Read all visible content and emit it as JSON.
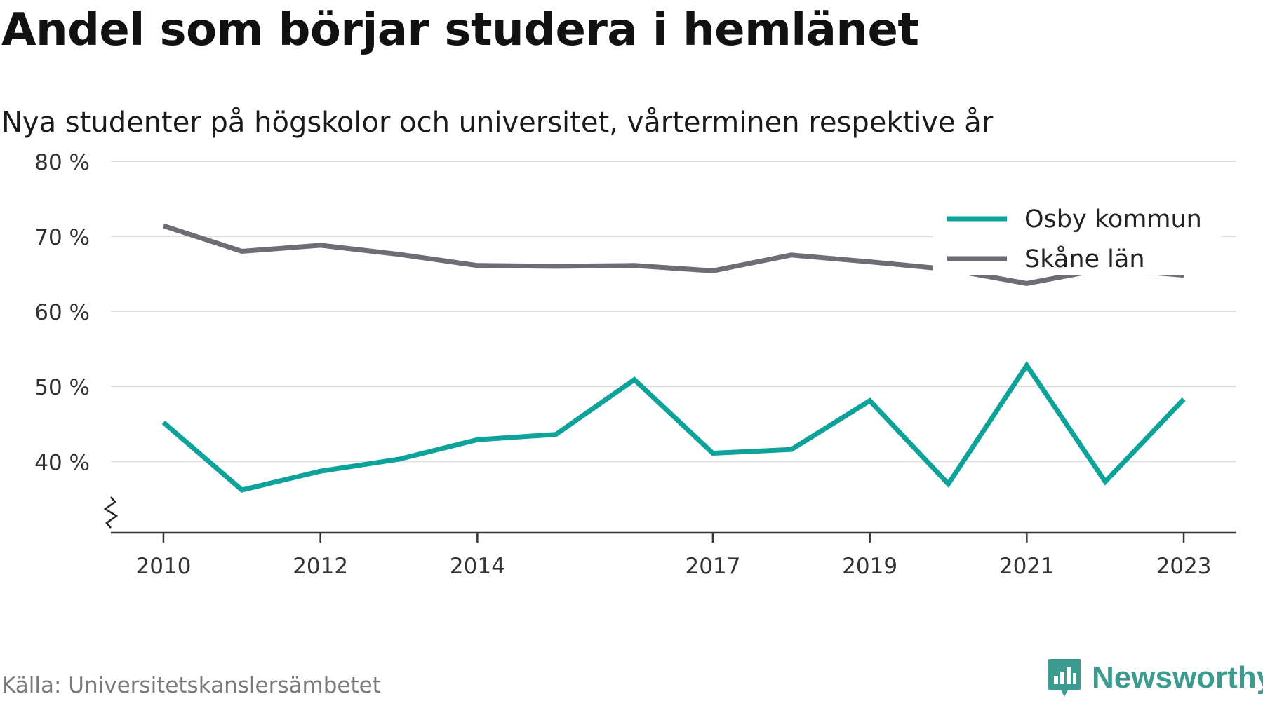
{
  "title": "Andel som börjar studera i hemlänet",
  "subtitle": "Nya studenter på högskolor och universitet, vårterminen respektive år",
  "source": "Källa: Universitetskanslersämbetet",
  "brand": {
    "name": "Newsworthy",
    "color": "#3b9b8f",
    "icon": "newsworthy-logo-icon"
  },
  "colors": {
    "grid": "#dddddd",
    "axis": "#333333"
  },
  "chart_data": {
    "type": "line",
    "title": "Andel som börjar studera i hemlänet",
    "subtitle": "Nya studenter på högskolor och universitet, vårterminen respektive år",
    "xlabel": "",
    "ylabel": "",
    "x": [
      2010,
      2011,
      2012,
      2013,
      2014,
      2015,
      2016,
      2017,
      2018,
      2019,
      2020,
      2021,
      2022,
      2023
    ],
    "x_tick_values": [
      2010,
      2012,
      2014,
      2017,
      2019,
      2021,
      2023
    ],
    "x_tick_labels": [
      "2010",
      "2012",
      "2014",
      "2017",
      "2019",
      "2021",
      "2023"
    ],
    "y_ticks": [
      40,
      50,
      60,
      70,
      80
    ],
    "y_tick_labels": [
      "40 %",
      "50 %",
      "60 %",
      "70 %",
      "80 %"
    ],
    "ylim": [
      30.5,
      80
    ],
    "xlim": [
      2009.33,
      2023.67
    ],
    "axis_break": true,
    "grid": "horizontal",
    "legend_position": "top-right",
    "series": [
      {
        "name": "Osby kommun",
        "color": "#0ea39a",
        "values": [
          45.2,
          36.2,
          38.7,
          40.3,
          42.9,
          43.6,
          50.9,
          41.1,
          41.6,
          48.1,
          37.0,
          52.8,
          37.3,
          48.3
        ]
      },
      {
        "name": "Skåne län",
        "color": "#6e6d75",
        "values": [
          71.4,
          68.0,
          68.8,
          67.6,
          66.1,
          66.0,
          66.1,
          65.4,
          67.5,
          66.6,
          65.6,
          63.7,
          65.7,
          64.8
        ]
      }
    ]
  }
}
